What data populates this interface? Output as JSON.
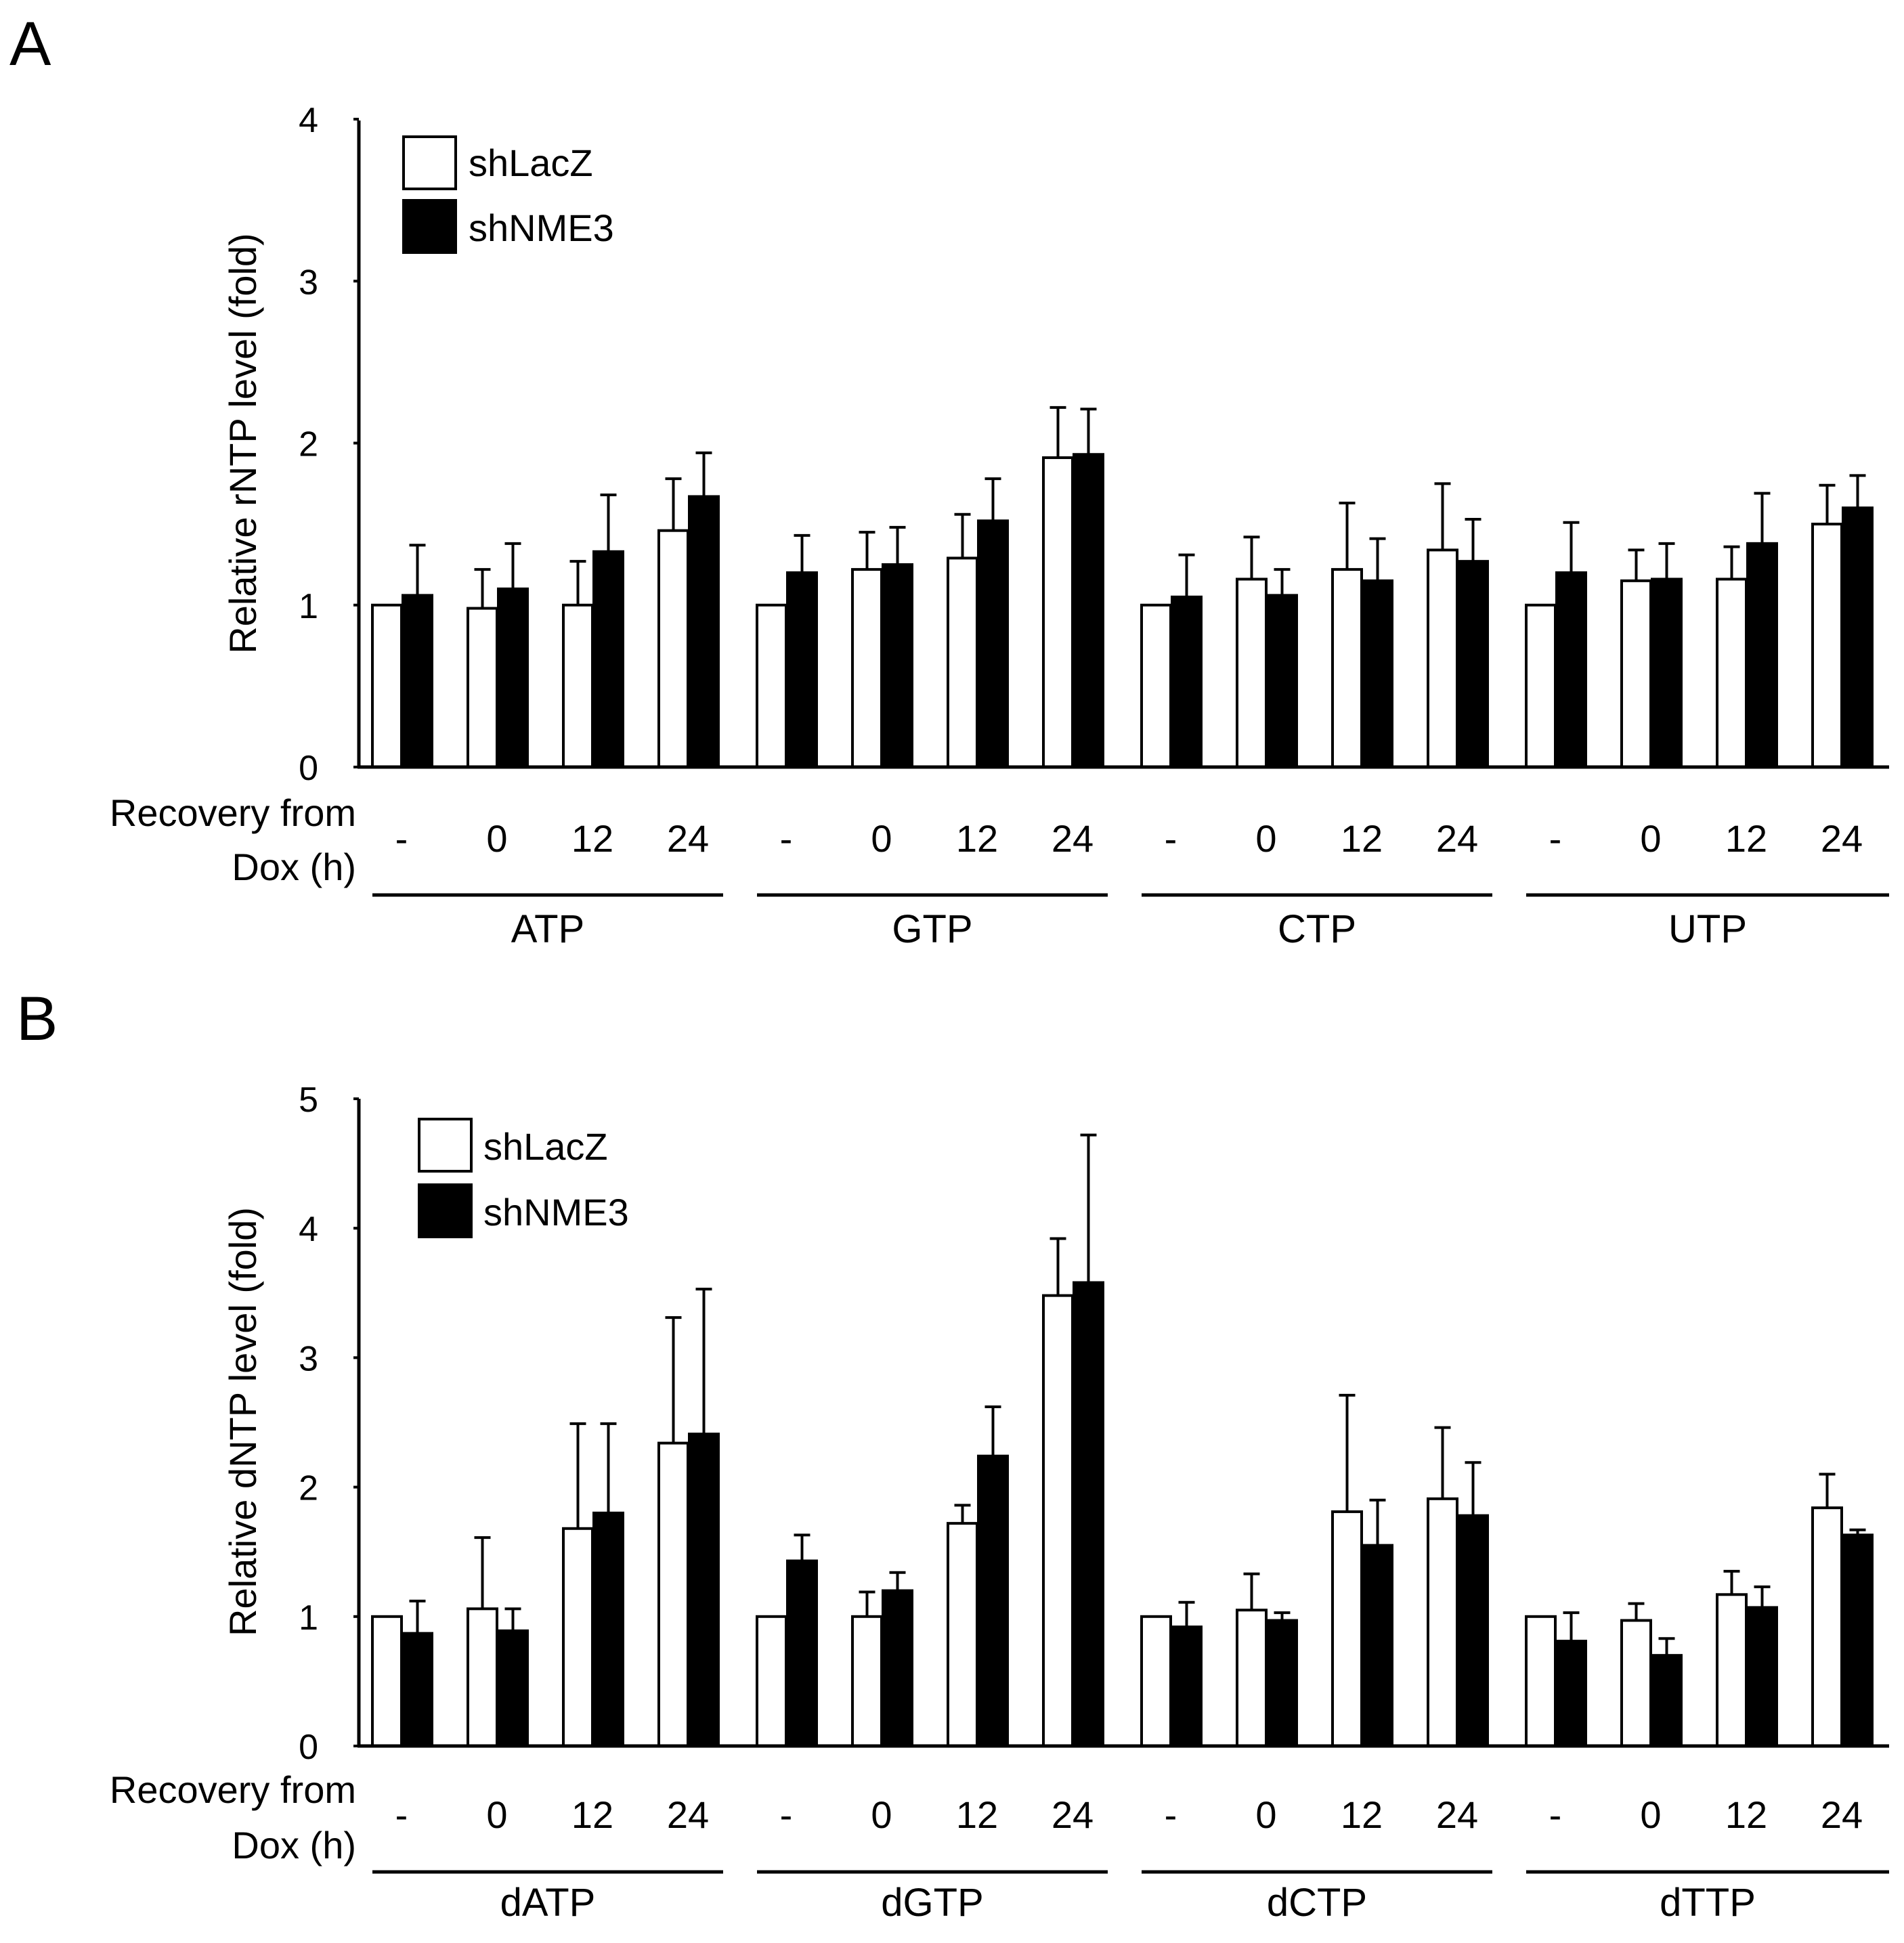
{
  "panels": [
    {
      "letter": "A",
      "legend": {
        "white": "shLacZ",
        "black": "shNME3"
      },
      "recovery_label": [
        "Recovery from",
        "Dox (h)"
      ],
      "timepoints": [
        "-",
        "0",
        "12",
        "24"
      ]
    },
    {
      "letter": "B",
      "legend": {
        "white": "shLacZ",
        "black": "shNME3"
      },
      "recovery_label": [
        "Recovery from",
        "Dox (h)"
      ],
      "timepoints": [
        "-",
        "0",
        "12",
        "24"
      ]
    }
  ],
  "chart_data": [
    {
      "type": "bar",
      "ylabel": "Relative rNTP level (fold)",
      "ylim": [
        0,
        4
      ],
      "yticks": [
        0,
        1,
        2,
        3,
        4
      ],
      "groups": [
        "ATP",
        "GTP",
        "CTP",
        "UTP"
      ],
      "categories": [
        "-",
        "0",
        "12",
        "24"
      ],
      "series": [
        {
          "name": "shLacZ",
          "color": "#ffffff",
          "values": [
            [
              1.0,
              0.98,
              1.0,
              1.46
            ],
            [
              1.0,
              1.22,
              1.29,
              1.91
            ],
            [
              1.0,
              1.16,
              1.22,
              1.34
            ],
            [
              1.0,
              1.15,
              1.16,
              1.5
            ]
          ],
          "errors": [
            [
              0.0,
              0.24,
              0.27,
              0.32
            ],
            [
              0.0,
              0.23,
              0.27,
              0.31
            ],
            [
              0.0,
              0.26,
              0.41,
              0.41
            ],
            [
              0.0,
              0.19,
              0.2,
              0.24
            ]
          ]
        },
        {
          "name": "shNME3",
          "color": "#000000",
          "values": [
            [
              1.06,
              1.1,
              1.33,
              1.67
            ],
            [
              1.2,
              1.25,
              1.52,
              1.93
            ],
            [
              1.05,
              1.06,
              1.15,
              1.27
            ],
            [
              1.2,
              1.16,
              1.38,
              1.6
            ]
          ],
          "errors": [
            [
              0.31,
              0.28,
              0.35,
              0.27
            ],
            [
              0.23,
              0.23,
              0.26,
              0.28
            ],
            [
              0.26,
              0.16,
              0.26,
              0.26
            ],
            [
              0.31,
              0.22,
              0.31,
              0.2
            ]
          ]
        }
      ]
    },
    {
      "type": "bar",
      "ylabel": "Relative dNTP level (fold)",
      "ylim": [
        0,
        5
      ],
      "yticks": [
        0,
        1,
        2,
        3,
        4,
        5
      ],
      "groups": [
        "dATP",
        "dGTP",
        "dCTP",
        "dTTP"
      ],
      "categories": [
        "-",
        "0",
        "12",
        "24"
      ],
      "series": [
        {
          "name": "shLacZ",
          "color": "#ffffff",
          "values": [
            [
              1.0,
              1.06,
              1.68,
              2.34
            ],
            [
              1.0,
              1.0,
              1.72,
              3.48
            ],
            [
              1.0,
              1.05,
              1.81,
              1.91
            ],
            [
              1.0,
              0.97,
              1.17,
              1.84
            ]
          ],
          "errors": [
            [
              0.0,
              0.55,
              0.81,
              0.97
            ],
            [
              0.0,
              0.19,
              0.14,
              0.44
            ],
            [
              0.0,
              0.28,
              0.9,
              0.55
            ],
            [
              0.0,
              0.13,
              0.18,
              0.26
            ]
          ]
        },
        {
          "name": "shNME3",
          "color": "#000000",
          "values": [
            [
              0.87,
              0.89,
              1.8,
              2.41
            ],
            [
              1.43,
              1.2,
              2.24,
              3.58
            ],
            [
              0.92,
              0.97,
              1.55,
              1.78
            ],
            [
              0.81,
              0.7,
              1.07,
              1.63
            ]
          ],
          "errors": [
            [
              0.25,
              0.17,
              0.69,
              1.12
            ],
            [
              0.2,
              0.14,
              0.38,
              1.14
            ],
            [
              0.19,
              0.06,
              0.35,
              0.41
            ],
            [
              0.22,
              0.13,
              0.16,
              0.04
            ]
          ]
        }
      ]
    }
  ]
}
